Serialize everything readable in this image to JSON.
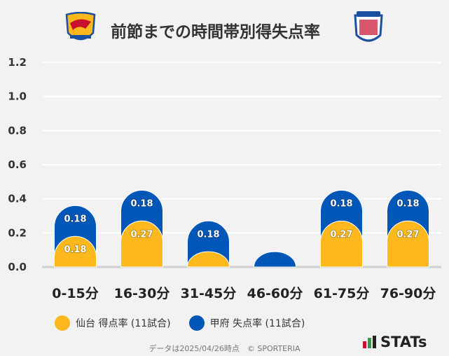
{
  "title": "前節までの時間帯別得失点率",
  "logos": {
    "home": "VEGALTA",
    "away": "VENTFORET KOFU"
  },
  "footer": "データは2025/04/26時点　© SPORTERIA",
  "brand": "STATs",
  "chart_data": {
    "type": "bar",
    "categories": [
      "0-15分",
      "16-30分",
      "31-45分",
      "46-60分",
      "61-75分",
      "76-90分"
    ],
    "series": [
      {
        "name": "仙台 得点率 (11試合)",
        "color": "#fdb81e",
        "values": [
          0.18,
          0.27,
          0.09,
          0,
          0.27,
          0.27
        ],
        "labels": [
          "0.18",
          "0.27",
          "",
          "",
          "0.27",
          "0.27"
        ]
      },
      {
        "name": "甲府 失点率 (11試合)",
        "color": "#0057b7",
        "values": [
          0.18,
          0.18,
          0.18,
          0.09,
          0.18,
          0.18
        ],
        "labels": [
          "0.18",
          "0.18",
          "0.18",
          "",
          "0.18",
          "0.18"
        ]
      }
    ],
    "stacked": true,
    "ylim": [
      0,
      1.2
    ],
    "yticks": [
      "0.0",
      "0.2",
      "0.4",
      "0.6",
      "0.8",
      "1.0",
      "1.2"
    ],
    "grid": true,
    "legend": "bottom"
  }
}
